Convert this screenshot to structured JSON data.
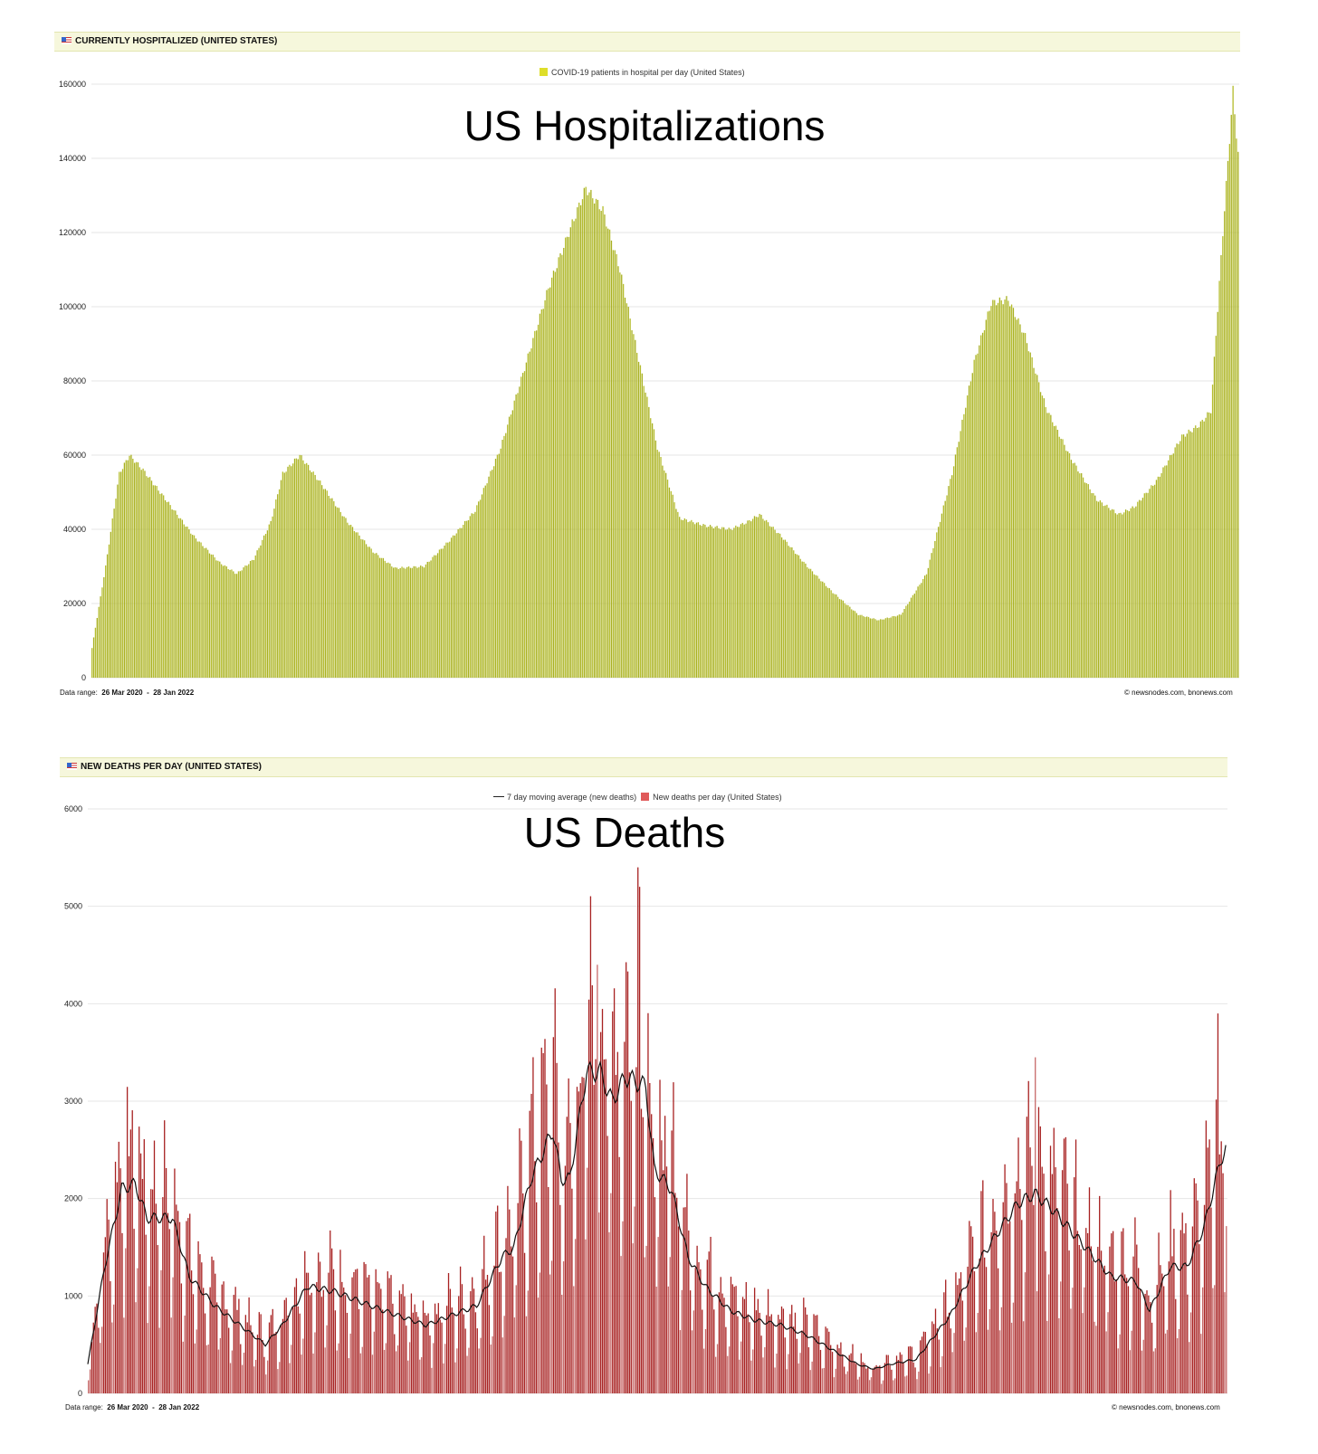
{
  "chart_data": [
    {
      "type": "bar",
      "header": "CURRENTLY HOSPITALIZED (UNITED STATES)",
      "title": "US Hospitalizations",
      "legend": [
        {
          "label": "COVID-19 patients in hospital per day (United States)",
          "color": "#dede2a"
        }
      ],
      "ylim": [
        0,
        160000
      ],
      "yticks": [
        0,
        20000,
        40000,
        60000,
        80000,
        100000,
        120000,
        140000,
        160000
      ],
      "x_unit": "days since 26 Mar 2020",
      "days": 674,
      "bar_color": "#b5bd2e",
      "points": [
        [
          0,
          8000
        ],
        [
          8,
          30000
        ],
        [
          16,
          55000
        ],
        [
          22,
          60000
        ],
        [
          30,
          56000
        ],
        [
          45,
          47000
        ],
        [
          60,
          38000
        ],
        [
          75,
          31000
        ],
        [
          85,
          28000
        ],
        [
          95,
          32000
        ],
        [
          105,
          42000
        ],
        [
          112,
          55000
        ],
        [
          122,
          60000
        ],
        [
          135,
          52000
        ],
        [
          150,
          42000
        ],
        [
          165,
          34000
        ],
        [
          178,
          29500
        ],
        [
          195,
          30000
        ],
        [
          210,
          37000
        ],
        [
          225,
          45000
        ],
        [
          240,
          62000
        ],
        [
          255,
          85000
        ],
        [
          268,
          105000
        ],
        [
          280,
          120000
        ],
        [
          290,
          132000
        ],
        [
          300,
          126000
        ],
        [
          310,
          110000
        ],
        [
          320,
          88000
        ],
        [
          332,
          62000
        ],
        [
          345,
          43000
        ],
        [
          360,
          41000
        ],
        [
          375,
          40000
        ],
        [
          385,
          42000
        ],
        [
          392,
          44000
        ],
        [
          405,
          38000
        ],
        [
          420,
          30000
        ],
        [
          435,
          23000
        ],
        [
          450,
          17000
        ],
        [
          462,
          15500
        ],
        [
          475,
          17000
        ],
        [
          490,
          28000
        ],
        [
          505,
          55000
        ],
        [
          518,
          85000
        ],
        [
          528,
          101000
        ],
        [
          538,
          102000
        ],
        [
          548,
          92000
        ],
        [
          560,
          73000
        ],
        [
          575,
          59000
        ],
        [
          590,
          48000
        ],
        [
          603,
          44000
        ],
        [
          612,
          46000
        ],
        [
          625,
          53000
        ],
        [
          640,
          65000
        ],
        [
          650,
          68000
        ],
        [
          657,
          72000
        ],
        [
          664,
          120000
        ],
        [
          670,
          158000
        ],
        [
          673,
          141000
        ]
      ],
      "footer": {
        "range_label": "Data range:",
        "start": "26 Mar 2020",
        "end": "28 Jan 2022",
        "credit": "© newsnodes.com, bnonews.com"
      }
    },
    {
      "type": "bar",
      "header": "NEW DEATHS PER DAY (UNITED STATES)",
      "title": "US Deaths",
      "legend": [
        {
          "label": "7 day moving average (new deaths)",
          "color": "#222222"
        },
        {
          "label": "New deaths per day (United States)",
          "color": "#e05a5a"
        }
      ],
      "ylim": [
        0,
        6000
      ],
      "yticks": [
        0,
        1000,
        2000,
        3000,
        4000,
        5000,
        6000
      ],
      "x_unit": "days since 26 Mar 2020",
      "days": 674,
      "bar_color": "#a82222",
      "moving_average_points": [
        [
          0,
          300
        ],
        [
          10,
          1300
        ],
        [
          20,
          2100
        ],
        [
          28,
          2150
        ],
        [
          35,
          1800
        ],
        [
          50,
          1800
        ],
        [
          60,
          1200
        ],
        [
          75,
          900
        ],
        [
          90,
          700
        ],
        [
          105,
          500
        ],
        [
          115,
          700
        ],
        [
          130,
          1100
        ],
        [
          145,
          1050
        ],
        [
          160,
          950
        ],
        [
          175,
          850
        ],
        [
          200,
          700
        ],
        [
          215,
          800
        ],
        [
          230,
          900
        ],
        [
          245,
          1400
        ],
        [
          252,
          1500
        ],
        [
          262,
          2200
        ],
        [
          275,
          2700
        ],
        [
          280,
          2200
        ],
        [
          285,
          2200
        ],
        [
          295,
          3300
        ],
        [
          303,
          3300
        ],
        [
          310,
          3000
        ],
        [
          318,
          3250
        ],
        [
          330,
          3150
        ],
        [
          335,
          2300
        ],
        [
          345,
          2100
        ],
        [
          355,
          1400
        ],
        [
          365,
          1100
        ],
        [
          380,
          850
        ],
        [
          395,
          750
        ],
        [
          410,
          700
        ],
        [
          425,
          600
        ],
        [
          440,
          450
        ],
        [
          455,
          300
        ],
        [
          465,
          250
        ],
        [
          475,
          300
        ],
        [
          490,
          350
        ],
        [
          510,
          800
        ],
        [
          525,
          1300
        ],
        [
          540,
          1700
        ],
        [
          550,
          1950
        ],
        [
          560,
          2050
        ],
        [
          570,
          1900
        ],
        [
          585,
          1600
        ],
        [
          605,
          1200
        ],
        [
          620,
          1150
        ],
        [
          628,
          850
        ],
        [
          640,
          1300
        ],
        [
          650,
          1300
        ],
        [
          660,
          1700
        ],
        [
          670,
          2400
        ],
        [
          673,
          2500
        ]
      ],
      "daily_peaks": [
        [
          326,
          5200
        ],
        [
          325,
          5400
        ],
        [
          301,
          4400
        ],
        [
          560,
          3450
        ],
        [
          668,
          3900
        ]
      ],
      "footer": {
        "range_label": "Data range:",
        "start": "26 Mar 2020",
        "end": "28 Jan 2022",
        "credit": "© newsnodes.com, bnonews.com"
      }
    }
  ]
}
